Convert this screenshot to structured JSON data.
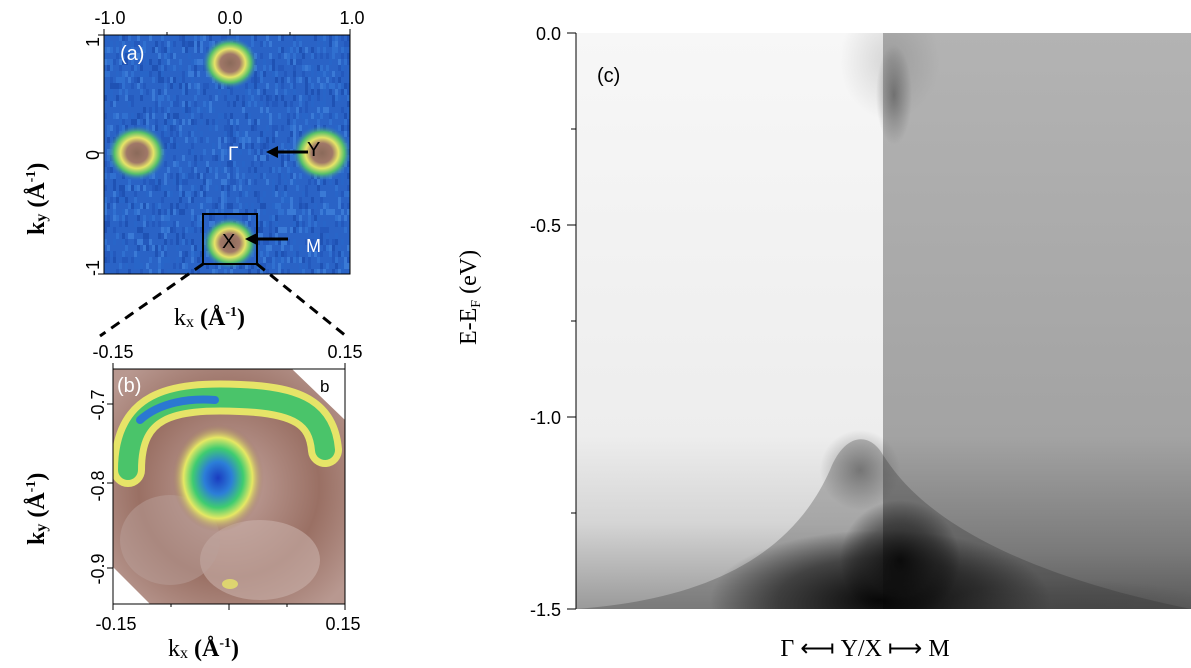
{
  "panel_a": {
    "label": "(a)",
    "x_ticks": [
      "-1.0",
      "0.0",
      "1.0"
    ],
    "y_ticks": [
      "1",
      "0",
      "-1"
    ],
    "x_label_main": "k",
    "x_label_sub": "x",
    "x_label_unit": "(Å",
    "x_label_exp": "-1",
    "x_label_close": ")",
    "y_label_main": "k",
    "y_label_sub": "y",
    "y_label_unit": "(Å",
    "y_label_exp": "-1",
    "y_label_close": ")",
    "points": {
      "gamma": "Γ",
      "y": "Y",
      "x": "X",
      "m": "M"
    }
  },
  "panel_b": {
    "label": "(b)",
    "corner": "b",
    "x_ticks": [
      "-0.15",
      "0.15"
    ],
    "top_ticks": [
      "-0.15",
      "0.15"
    ],
    "y_ticks": [
      "-0.7",
      "-0.8",
      "-0.9"
    ],
    "x_label_main": "k",
    "x_label_sub": "x",
    "x_label_unit": "(Å",
    "x_label_exp": "-1",
    "x_label_close": ")",
    "y_label_main": "k",
    "y_label_sub": "y",
    "y_label_unit": "(Å",
    "y_label_exp": "-1",
    "y_label_close": ")"
  },
  "panel_c": {
    "label": "(c)",
    "y_ticks": [
      "0.0",
      "-0.5",
      "-1.0",
      "-1.5"
    ],
    "y_label_pre": "E-E",
    "y_label_sub": "F",
    "y_label_post": " (eV)",
    "x_label": "Γ ⟻ Y/X ⟼ M"
  },
  "chart_data": {
    "type": "heatmap",
    "panel_c_energy_range_eV": [
      -1.5,
      0.0
    ],
    "panel_a_k_range": [
      -1.0,
      1.0
    ],
    "panel_b_k_range": [
      -0.15,
      0.15
    ]
  },
  "colors": {
    "map_blue": "#2b64c8",
    "map_green": "#3fc060",
    "map_yellow": "#e8e85a",
    "map_brown": "#9a7064"
  }
}
